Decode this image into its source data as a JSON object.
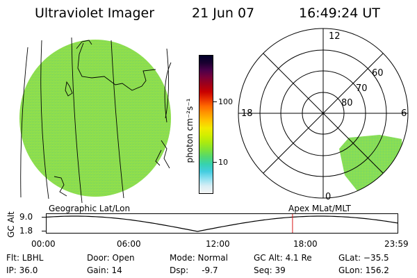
{
  "header": {
    "instrument": "Ultraviolet Imager",
    "date": "21 Jun 07",
    "time": "16:49:24 UT"
  },
  "colorbar": {
    "unit": "photon cm⁻²s⁻¹",
    "ticks": [
      "100",
      "10"
    ],
    "gradient": [
      "#000028",
      "#1a0030",
      "#4a004a",
      "#7a0038",
      "#a00018",
      "#c80000",
      "#e83000",
      "#ff6a00",
      "#ff9a00",
      "#ffc400",
      "#f2ea00",
      "#d2ee00",
      "#aaea10",
      "#7ee238",
      "#52d870",
      "#36d2b0",
      "#44cde0",
      "#8ee0f0",
      "#d8eef5",
      "#f5f5f5"
    ]
  },
  "polar_plot": {
    "mlt_labels": {
      "top": "12",
      "left": "18",
      "right": "6",
      "bottom": "0"
    },
    "lat_labels": [
      "60",
      "70",
      "80"
    ]
  },
  "map_labels": {
    "left": "Geographic Lat/Lon",
    "right": "Apex MLat/MLT"
  },
  "altitude_plot": {
    "ylabel": "GC Alt",
    "yticks": [
      "9.0",
      "1.8"
    ],
    "xticks": [
      "00:00",
      "06:00",
      "12:00",
      "18:00",
      "23:59"
    ],
    "current_time_hours": 16.82,
    "marker_color": "#d81818"
  },
  "status": {
    "flt": "Flt: LBHL",
    "ip": "IP: 36.0",
    "door": "Door: Open",
    "gain": "Gain: 14",
    "mode": "Mode: Normal",
    "dsp": "Dsp:     -9.7",
    "gcalt": "GC Alt: 4.1 Re",
    "seq": "Seq: 39",
    "glat": "GLat: −35.5",
    "glon": "GLon: 156.2"
  },
  "colors": {
    "earth_fill": "#8edf4c",
    "auroral_fill": "#86dd58"
  }
}
